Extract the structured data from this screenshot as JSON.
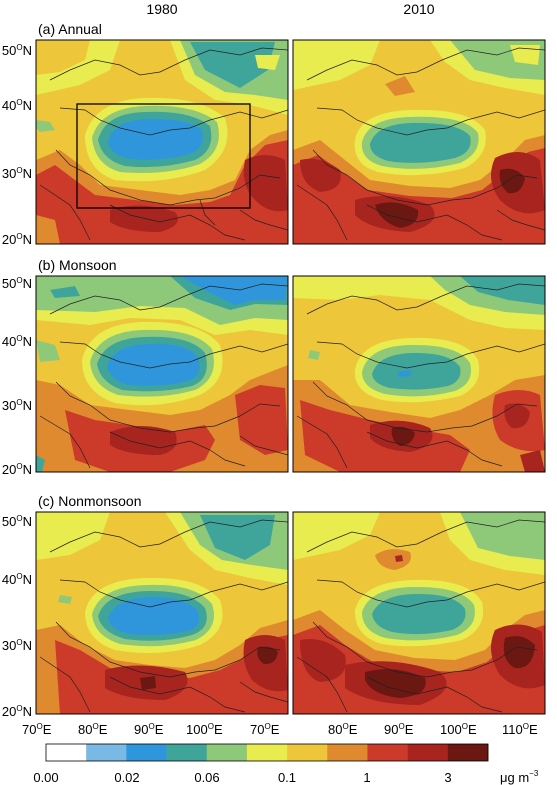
{
  "columns": [
    "1980",
    "2010"
  ],
  "rows": [
    {
      "label": "(a) Annual"
    },
    {
      "label": "(b) Monsoon"
    },
    {
      "label": "(c) Nonmonsoon"
    }
  ],
  "y_ticks": [
    {
      "deg": "50",
      "sup": "O",
      "hemi": "N"
    },
    {
      "deg": "40",
      "sup": "O",
      "hemi": "N"
    },
    {
      "deg": "30",
      "sup": "O",
      "hemi": "N"
    },
    {
      "deg": "20",
      "sup": "O",
      "hemi": "N"
    }
  ],
  "x_ticks": [
    {
      "deg": "70",
      "sup": "O",
      "hemi": "E"
    },
    {
      "deg": "80",
      "sup": "O",
      "hemi": "E"
    },
    {
      "deg": "90",
      "sup": "O",
      "hemi": "E"
    },
    {
      "deg": "100",
      "sup": "O",
      "hemi": "E"
    },
    {
      "deg": "70",
      "sup": "O",
      "hemi": "E"
    },
    {
      "deg": "80",
      "sup": "O",
      "hemi": "E"
    },
    {
      "deg": "90",
      "sup": "O",
      "hemi": "E"
    },
    {
      "deg": "100",
      "sup": "O",
      "hemi": "E"
    },
    {
      "deg": "110",
      "sup": "O",
      "hemi": "E"
    }
  ],
  "colorbar": {
    "colors": [
      "#ffffff",
      "#7ab8e6",
      "#2f96dc",
      "#3fa59a",
      "#8ec97a",
      "#e8ec4e",
      "#eec63a",
      "#e08a30",
      "#cc3a2a",
      "#a8241f",
      "#6b1712"
    ],
    "labels": [
      "0.00",
      "0.02",
      "0.06",
      "0.1",
      "1",
      "3"
    ],
    "unit": "μg m",
    "unit_sup": "−3"
  }
}
